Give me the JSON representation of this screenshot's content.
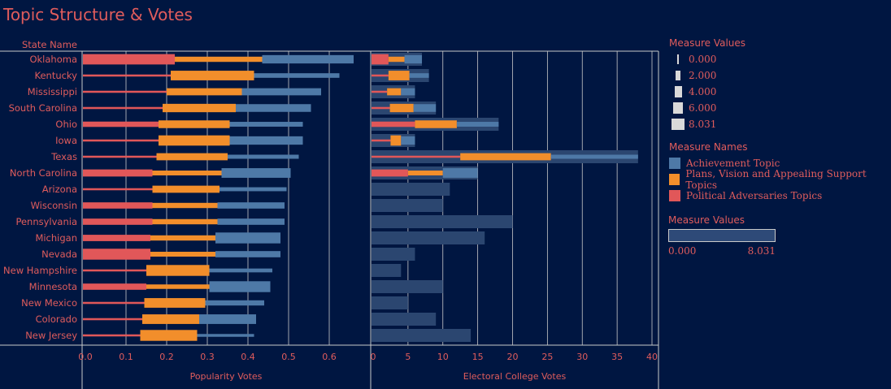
{
  "title": "Topic Structure & Votes",
  "colors": {
    "background": "#001641",
    "text": "#e05c5c",
    "achievement": "#4e79a7",
    "plans": "#f28e2b",
    "adversaries": "#e15759",
    "ec_bar": "#2b4670",
    "grid": "#c9c9c9"
  },
  "legend": {
    "size_title": "Measure Values",
    "size_items": [
      "0.000",
      "2.000",
      "4.000",
      "6.000",
      "8.031"
    ],
    "names_title": "Measure Names",
    "names_items": [
      {
        "label": "Achievement Topic",
        "color": "#4e79a7"
      },
      {
        "label": "Plans, Vision and Appealing Support Topics",
        "color": "#f28e2b"
      },
      {
        "label": "Political Adversaries Topics",
        "color": "#e15759"
      }
    ],
    "color_title": "Measure Values",
    "color_min": "0.000",
    "color_max": "8.031"
  },
  "chart_data": {
    "type": "bar",
    "row_header": "State Name",
    "categories": [
      "Oklahoma",
      "Kentucky",
      "Mississippi",
      "South Carolina",
      "Ohio",
      "Iowa",
      "Texas",
      "North Carolina",
      "Arizona",
      "Wisconsin",
      "Pennsylvania",
      "Michigan",
      "Nevada",
      "New Hampshire",
      "Minnesota",
      "New Mexico",
      "Colorado",
      "New Jersey"
    ],
    "popularity": {
      "xlabel": "Popularity Votes",
      "xlim": [
        0,
        0.7
      ],
      "ticks": [
        "0.0",
        "0.1",
        "0.2",
        "0.3",
        "0.4",
        "0.5",
        "0.6"
      ],
      "series": [
        {
          "name": "Political Adversaries Topics",
          "values": [
            0.22,
            0.21,
            0.2,
            0.19,
            0.18,
            0.18,
            0.175,
            0.165,
            0.165,
            0.165,
            0.165,
            0.16,
            0.16,
            0.15,
            0.15,
            0.145,
            0.14,
            0.135
          ]
        },
        {
          "name": "Plans, Vision and Appealing Support Topics",
          "values": [
            0.435,
            0.415,
            0.385,
            0.37,
            0.355,
            0.355,
            0.35,
            0.335,
            0.33,
            0.325,
            0.325,
            0.32,
            0.32,
            0.305,
            0.305,
            0.295,
            0.28,
            0.275
          ]
        },
        {
          "name": "Achievement Topic",
          "values": [
            0.66,
            0.625,
            0.58,
            0.555,
            0.535,
            0.535,
            0.525,
            0.505,
            0.495,
            0.49,
            0.49,
            0.48,
            0.48,
            0.46,
            0.455,
            0.44,
            0.42,
            0.415
          ]
        }
      ],
      "thickness": {
        "adversaries": [
          7.6,
          1,
          1,
          1,
          3.6,
          1,
          1,
          5,
          1,
          4.3,
          4.3,
          4.4,
          8.03,
          1,
          4.3,
          1,
          1,
          1
        ],
        "plans": [
          3.5,
          7,
          5,
          6,
          5.5,
          7.5,
          5,
          3.2,
          5,
          3.5,
          3.5,
          3.5,
          3.2,
          8,
          2.9,
          7,
          7,
          8
        ],
        "achievement": [
          6,
          3,
          5,
          5.5,
          3.2,
          6,
          2.6,
          7,
          2.5,
          4.3,
          4.3,
          8,
          4.3,
          2.4,
          8,
          3.5,
          7,
          1.6
        ]
      }
    },
    "electoral": {
      "xlabel": "Electoral College Votes",
      "xlim": [
        0,
        40
      ],
      "ticks": [
        "0",
        "5",
        "10",
        "15",
        "20",
        "25",
        "30",
        "35",
        "40"
      ],
      "totals": [
        7,
        8,
        6,
        9,
        18,
        6,
        38,
        15,
        11,
        10,
        20,
        16,
        6,
        4,
        10,
        5,
        9,
        14
      ],
      "series": [
        {
          "name": "Political Adversaries Topics",
          "values": [
            2.2,
            2.2,
            2,
            2.4,
            6,
            2.5,
            12.5,
            5,
            0,
            0,
            0,
            0,
            0,
            0,
            0,
            0,
            0,
            0
          ]
        },
        {
          "name": "Plans, Vision and Appealing Support Topics",
          "values": [
            4.5,
            5.2,
            4,
            5.8,
            12,
            4,
            25.5,
            10,
            0,
            0,
            0,
            0,
            0,
            0,
            0,
            0,
            0,
            0
          ]
        },
        {
          "name": "Achievement Topic",
          "values": [
            7,
            8,
            6,
            9,
            18,
            6,
            38,
            15,
            0,
            0,
            0,
            0,
            0,
            0,
            0,
            0,
            0,
            0
          ]
        }
      ]
    }
  }
}
